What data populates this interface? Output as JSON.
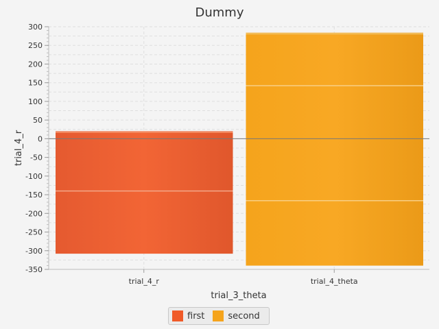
{
  "chart_data": {
    "type": "bar",
    "title": "Dummy",
    "xlabel": "trial_3_theta",
    "ylabel": "trial_4_r",
    "categories": [
      "trial_4_r",
      "trial_4_theta"
    ],
    "ylim": [
      -350,
      300
    ],
    "yticks": [
      300,
      250,
      200,
      150,
      100,
      50,
      0,
      -50,
      -100,
      -150,
      -200,
      -250,
      -300,
      -350
    ],
    "grid": true,
    "legend_position": "bottom",
    "series": [
      {
        "name": "first",
        "color": "#f05a28",
        "low": -308,
        "high": 20,
        "inner_line": -140,
        "category": "trial_4_r"
      },
      {
        "name": "second",
        "color": "#f5a41c",
        "low": -340,
        "high": 284,
        "inner_line": -166,
        "inner_line_2": 142,
        "category": "trial_4_theta"
      }
    ]
  }
}
